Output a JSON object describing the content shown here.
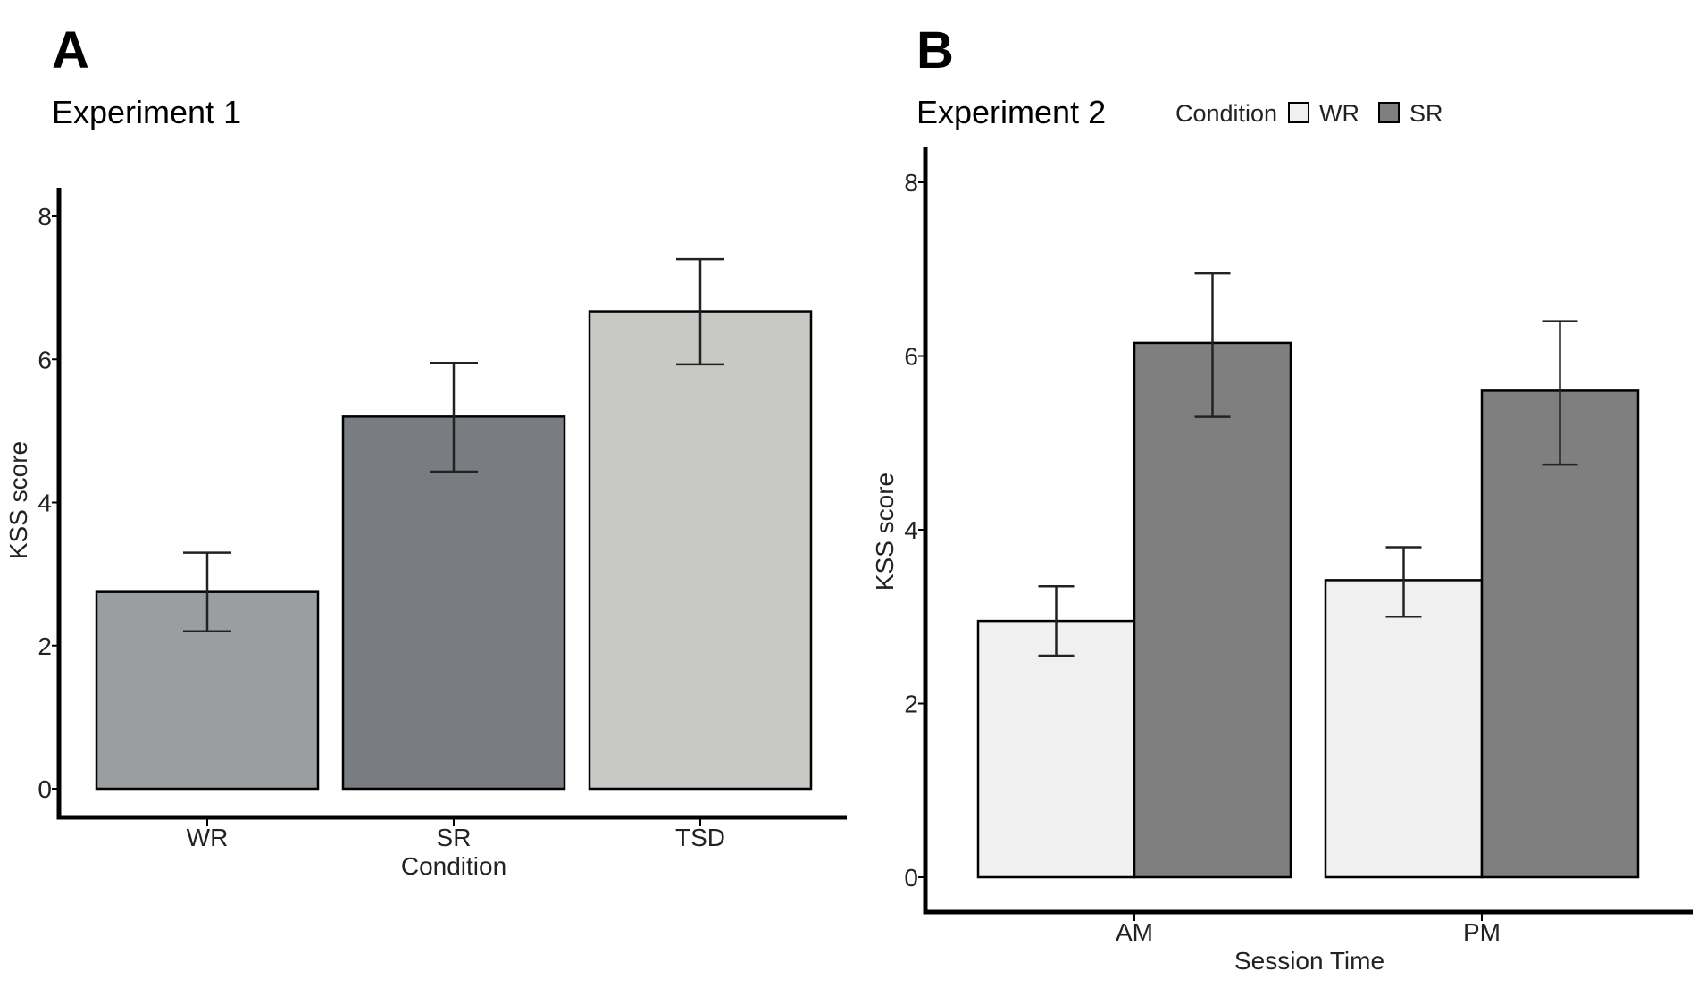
{
  "panels": {
    "a": {
      "letter": "A",
      "title": "Experiment 1"
    },
    "b": {
      "letter": "B",
      "title": "Experiment 2"
    }
  },
  "legend": {
    "title": "Condition",
    "items": [
      {
        "label": "WR",
        "color": "#f0f0f0"
      },
      {
        "label": "SR",
        "color": "#7f7f7f"
      }
    ]
  },
  "chart_data": [
    {
      "type": "bar",
      "title": "Experiment 1",
      "xlabel": "Condition",
      "ylabel": "KSS score",
      "ylim": [
        0,
        8
      ],
      "yticks": [
        0,
        2,
        4,
        6,
        8
      ],
      "categories": [
        "WR",
        "SR",
        "TSD"
      ],
      "values": [
        2.75,
        5.2,
        6.67
      ],
      "error_low": [
        2.2,
        4.43,
        5.93
      ],
      "error_high": [
        3.3,
        5.95,
        7.4
      ],
      "colors": [
        "#9b9ea1",
        "#797c80",
        "#c8c8c4"
      ],
      "grid": false,
      "legend": false
    },
    {
      "type": "bar",
      "title": "Experiment 2",
      "xlabel": "Session Time",
      "ylabel": "KSS score",
      "ylim": [
        0,
        8
      ],
      "yticks": [
        0,
        2,
        4,
        6,
        8
      ],
      "categories": [
        "AM",
        "PM"
      ],
      "series": [
        {
          "name": "WR",
          "color": "#f0f0f0",
          "values": [
            2.95,
            3.42
          ],
          "error_low": [
            2.55,
            3.0
          ],
          "error_high": [
            3.35,
            3.8
          ]
        },
        {
          "name": "SR",
          "color": "#7f7f7f",
          "values": [
            6.15,
            5.6
          ],
          "error_low": [
            5.3,
            4.75
          ],
          "error_high": [
            6.95,
            6.4
          ]
        }
      ],
      "grid": false,
      "legend": "top"
    }
  ]
}
